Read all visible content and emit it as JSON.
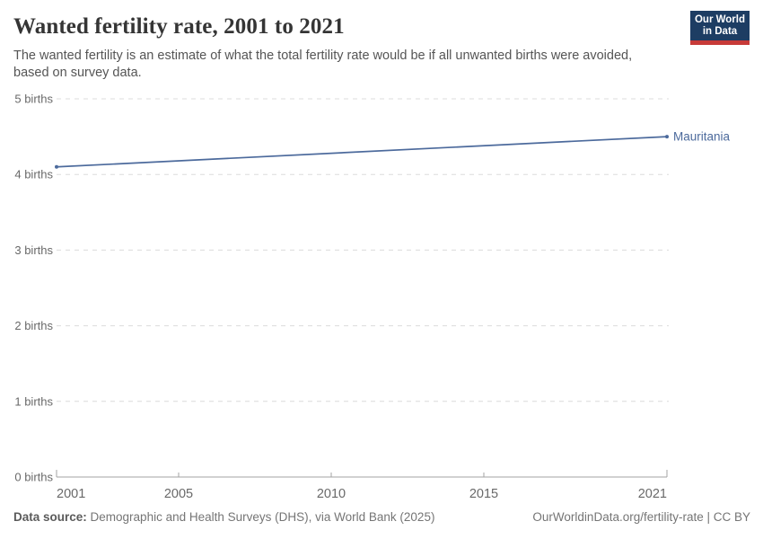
{
  "header": {
    "title": "Wanted fertility rate, 2001 to 2021",
    "subtitle_line1": "The wanted fertility is an estimate of what the total fertility rate would be if all unwanted births were avoided,",
    "subtitle_line2": "based on survey data.",
    "logo": {
      "line1": "Our World",
      "line2": "in Data",
      "bg_color": "#1d3d63",
      "accent_color": "#c73a38"
    }
  },
  "chart_data": {
    "type": "line",
    "title": "Wanted fertility rate, 2001 to 2021",
    "xlabel": "",
    "ylabel": "",
    "xlim": [
      2001,
      2021
    ],
    "ylim": [
      0,
      5
    ],
    "x_ticks": [
      2001,
      2005,
      2010,
      2015,
      2021
    ],
    "y_ticks": [
      {
        "value": 0,
        "label": "0 births"
      },
      {
        "value": 1,
        "label": "1 births"
      },
      {
        "value": 2,
        "label": "2 births"
      },
      {
        "value": 3,
        "label": "3 births"
      },
      {
        "value": 4,
        "label": "4 births"
      },
      {
        "value": 5,
        "label": "5 births"
      }
    ],
    "grid": "horizontal-dashed",
    "legend_position": "line-end-label",
    "series": [
      {
        "name": "Mauritania",
        "color": "#4C6A9C",
        "points": [
          {
            "x": 2001,
            "y": 4.1
          },
          {
            "x": 2021,
            "y": 4.5
          }
        ]
      }
    ],
    "style": {
      "grid_color": "#dcdcdc",
      "axis_color": "#a3a3a3",
      "tick_label_color": "#696969"
    }
  },
  "footer": {
    "source_label": "Data source:",
    "source_text": " Demographic and Health Surveys (DHS), via World Bank (2025)",
    "attribution": "OurWorldinData.org/fertility-rate | CC BY"
  }
}
